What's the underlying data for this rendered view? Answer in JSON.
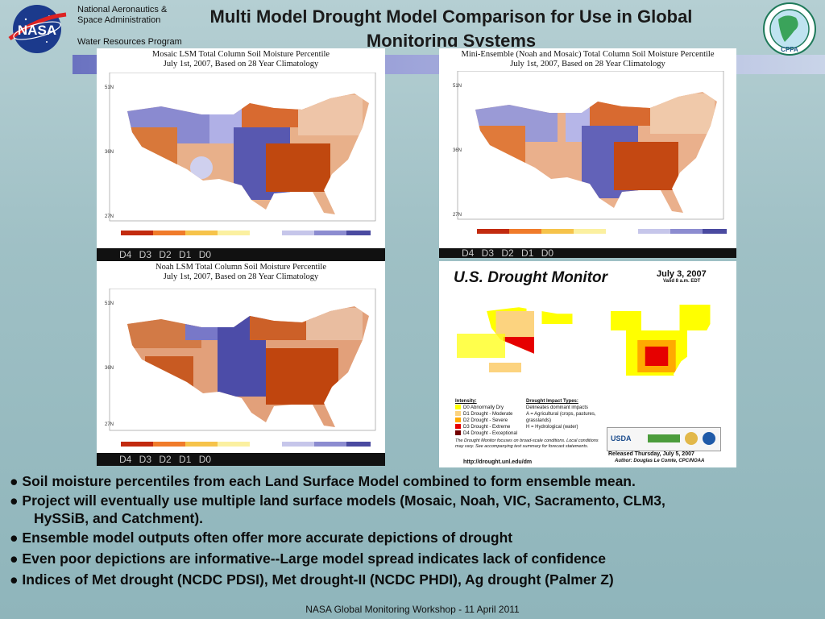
{
  "header": {
    "org_line1": "National Aeronautics &",
    "org_line2": "Space Administration",
    "program": "Water Resources Program",
    "title": "Multi Model Drought Model Comparison for Use in Global Monitoring Systems",
    "nasa_logo_text": "NASA",
    "cppa_logo_text": "CPPA"
  },
  "panels": {
    "mosaic": {
      "caption_l1": "Mosaic LSM Total Column Soil Moisture Percentile",
      "caption_l2": "July 1st, 2007, Based on 28 Year Climatology",
      "legend_labels": "D4 D3 D2 D1 D0"
    },
    "ensemble": {
      "caption_l1": "Mini-Ensemble (Noah and Mosaic) Total Column Soil Moisture Percentile",
      "caption_l2": "July 1st, 2007, Based on 28 Year Climatology",
      "legend_labels": "D4 D3 D2 D1 D0"
    },
    "noah": {
      "caption_l1": "Noah LSM Total Column Soil Moisture Percentile",
      "caption_l2": "July 1st, 2007, Based on 28 Year Climatology",
      "legend_labels": "D4 D3 D2 D1 D0"
    },
    "usdm": {
      "title": "U.S. Drought Monitor",
      "date": "July 3, 2007",
      "valid": "Valid 8 a.m. EDT",
      "intensity_title": "Intensity:",
      "intensity_items": [
        "D0 Abnormally Dry",
        "D1 Drought - Moderate",
        "D2 Drought - Severe",
        "D3 Drought - Extreme",
        "D4 Drought - Exceptional"
      ],
      "intensity_colors": [
        "#ffff00",
        "#fcd37f",
        "#ffaa00",
        "#e60000",
        "#730000"
      ],
      "impact_title": "Drought Impact Types:",
      "impact_items": [
        "Delineates dominant impacts",
        "A = Agricultural (crops, pastures, grasslands)",
        "H = Hydrological (water)"
      ],
      "note": "The Drought Monitor focuses on broad-scale conditions. Local conditions may vary. See accompanying text summary for forecast statements.",
      "url": "http://drought.unl.edu/dm",
      "released": "Released Thursday, July 5, 2007",
      "author": "Author: Douglas Le Comte, CPC/NOAA",
      "usda": "USDA"
    }
  },
  "bullets": [
    "● Soil moisture percentiles from each Land Surface Model combined to form ensemble mean.",
    "● Project will eventually use multiple land surface models (Mosaic, Noah, VIC, Sacramento, CLM3,",
    "HySSiB, and Catchment).",
    "● Ensemble model outputs often offer more accurate depictions of drought",
    "● Even poor depictions are informative--Large model spread indicates lack of confidence",
    "● Indices of Met drought (NCDC PDSI), Met drought-II (NCDC PHDI), Ag drought (Palmer Z)"
  ],
  "footer": "NASA Global Monitoring Workshop -  11 April 2011"
}
